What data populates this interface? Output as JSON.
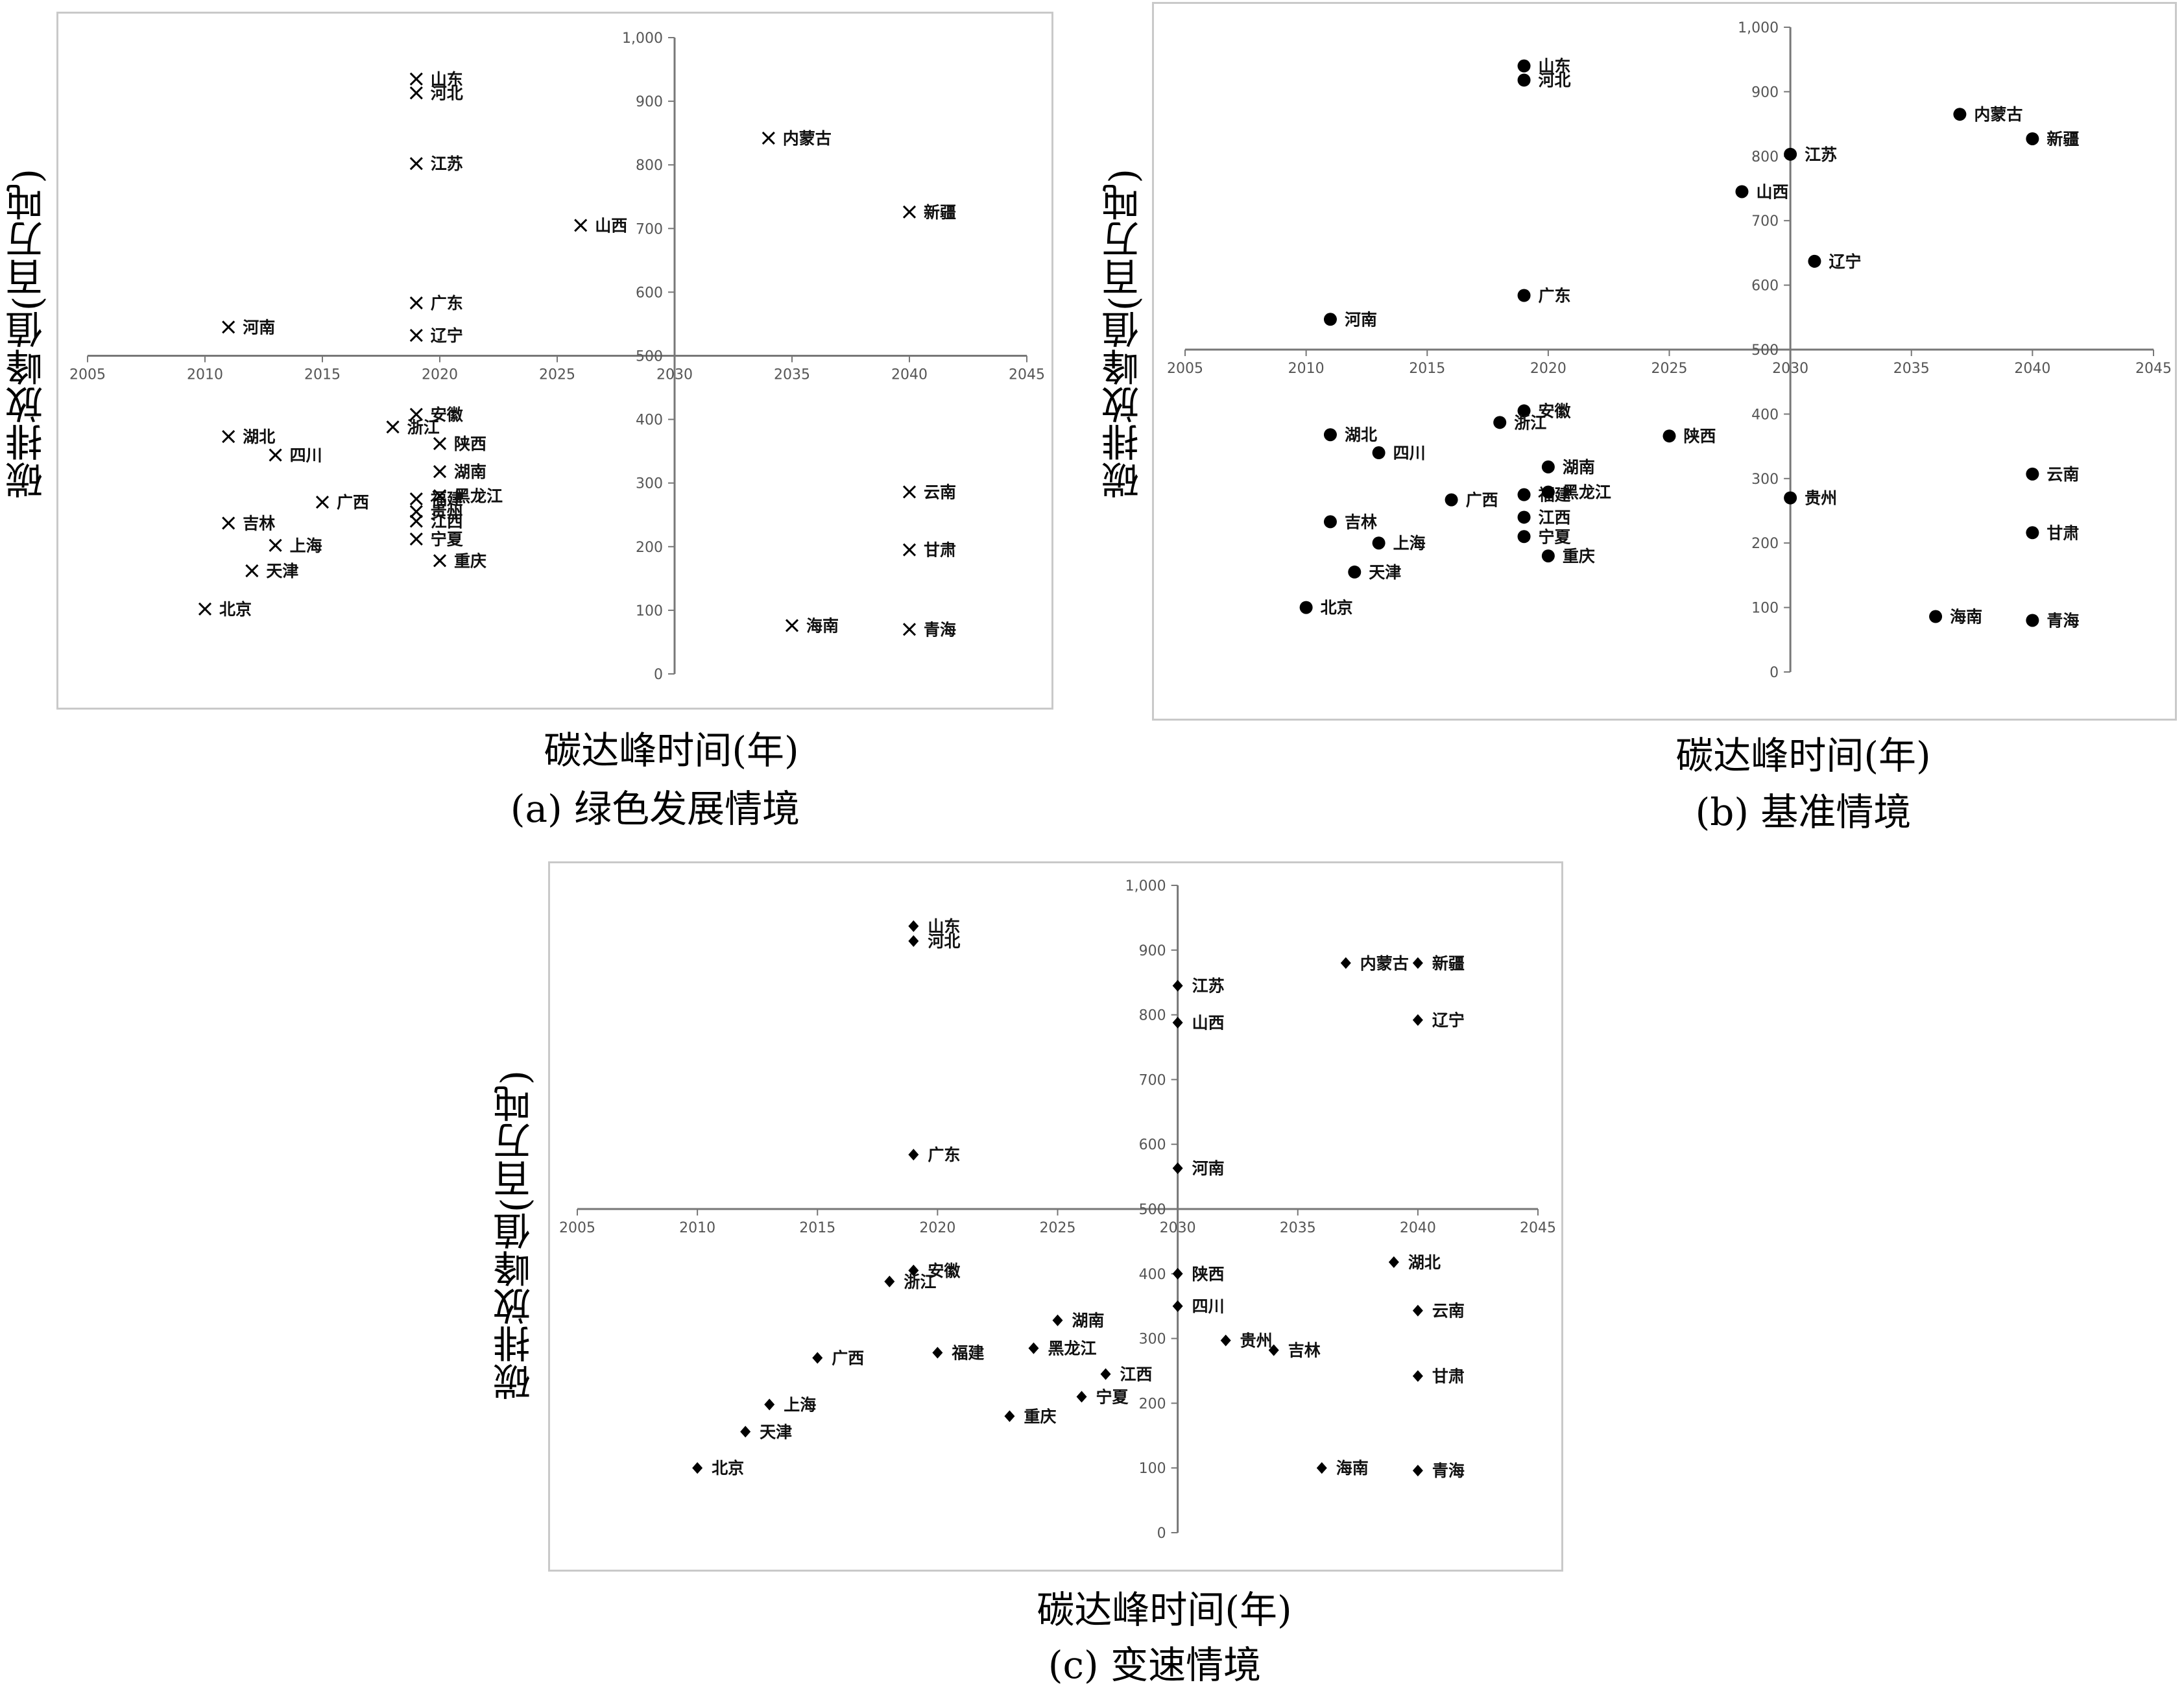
{
  "chart_data": [
    {
      "type": "scatter",
      "caption": "(a) 绿色发展情境",
      "xlabel": "碳达峰时间(年)",
      "ylabel": "碳排放峰值(百万吨)",
      "xlim": [
        2005,
        2045
      ],
      "ylim": [
        0,
        1000
      ],
      "xticks": [
        "2005",
        "2010",
        "2015",
        "2020",
        "2025",
        "2030",
        "2035",
        "2040",
        "2045"
      ],
      "yticks": [
        "0",
        "100",
        "200",
        "300",
        "400",
        "500",
        "600",
        "700",
        "800",
        "900",
        "1,000"
      ],
      "x_axis_crosses_y_at": 500,
      "y_axis_crosses_x_at": 2030,
      "marker": "x",
      "points": [
        {
          "name": "山东",
          "x": 2019,
          "y": 935
        },
        {
          "name": "河北",
          "x": 2019,
          "y": 913
        },
        {
          "name": "江苏",
          "x": 2019,
          "y": 802
        },
        {
          "name": "内蒙古",
          "x": 2034,
          "y": 842
        },
        {
          "name": "新疆",
          "x": 2040,
          "y": 726
        },
        {
          "name": "山西",
          "x": 2026,
          "y": 705
        },
        {
          "name": "广东",
          "x": 2019,
          "y": 583
        },
        {
          "name": "河南",
          "x": 2011,
          "y": 545
        },
        {
          "name": "辽宁",
          "x": 2019,
          "y": 532
        },
        {
          "name": "安徽",
          "x": 2019,
          "y": 408
        },
        {
          "name": "浙江",
          "x": 2018,
          "y": 388
        },
        {
          "name": "湖北",
          "x": 2011,
          "y": 373
        },
        {
          "name": "陕西",
          "x": 2020,
          "y": 362
        },
        {
          "name": "四川",
          "x": 2013,
          "y": 344
        },
        {
          "name": "湖南",
          "x": 2020,
          "y": 318
        },
        {
          "name": "福建",
          "x": 2019,
          "y": 275
        },
        {
          "name": "黑龙江",
          "x": 2020,
          "y": 280
        },
        {
          "name": "广西",
          "x": 2015,
          "y": 270
        },
        {
          "name": "贵州",
          "x": 2019,
          "y": 255
        },
        {
          "name": "江西",
          "x": 2019,
          "y": 240
        },
        {
          "name": "吉林",
          "x": 2011,
          "y": 237
        },
        {
          "name": "宁夏",
          "x": 2019,
          "y": 212
        },
        {
          "name": "上海",
          "x": 2013,
          "y": 202
        },
        {
          "name": "重庆",
          "x": 2020,
          "y": 178
        },
        {
          "name": "天津",
          "x": 2012,
          "y": 162
        },
        {
          "name": "北京",
          "x": 2010,
          "y": 102
        },
        {
          "name": "云南",
          "x": 2040,
          "y": 286
        },
        {
          "name": "甘肃",
          "x": 2040,
          "y": 195
        },
        {
          "name": "海南",
          "x": 2035,
          "y": 76
        },
        {
          "name": "青海",
          "x": 2040,
          "y": 70
        }
      ]
    },
    {
      "type": "scatter",
      "caption": "(b) 基准情境",
      "xlabel": "碳达峰时间(年)",
      "ylabel": "碳排放峰值(百万吨)",
      "xlim": [
        2005,
        2045
      ],
      "ylim": [
        0,
        1000
      ],
      "xticks": [
        "2005",
        "2010",
        "2015",
        "2020",
        "2025",
        "2030",
        "2035",
        "2040",
        "2045"
      ],
      "yticks": [
        "0",
        "100",
        "200",
        "300",
        "400",
        "500",
        "600",
        "700",
        "800",
        "900",
        "1,000"
      ],
      "x_axis_crosses_y_at": 500,
      "y_axis_crosses_x_at": 2030,
      "marker": "circle",
      "points": [
        {
          "name": "山东",
          "x": 2019,
          "y": 940
        },
        {
          "name": "河北",
          "x": 2019,
          "y": 918
        },
        {
          "name": "内蒙古",
          "x": 2037,
          "y": 865
        },
        {
          "name": "新疆",
          "x": 2040,
          "y": 827
        },
        {
          "name": "江苏",
          "x": 2030,
          "y": 803
        },
        {
          "name": "山西",
          "x": 2028,
          "y": 745
        },
        {
          "name": "辽宁",
          "x": 2031,
          "y": 637
        },
        {
          "name": "广东",
          "x": 2019,
          "y": 584
        },
        {
          "name": "河南",
          "x": 2011,
          "y": 547
        },
        {
          "name": "安徽",
          "x": 2019,
          "y": 405
        },
        {
          "name": "浙江",
          "x": 2018,
          "y": 387
        },
        {
          "name": "湖北",
          "x": 2011,
          "y": 368
        },
        {
          "name": "陕西",
          "x": 2025,
          "y": 366
        },
        {
          "name": "四川",
          "x": 2013,
          "y": 340
        },
        {
          "name": "湖南",
          "x": 2020,
          "y": 318
        },
        {
          "name": "福建",
          "x": 2019,
          "y": 275
        },
        {
          "name": "黑龙江",
          "x": 2020,
          "y": 279
        },
        {
          "name": "广西",
          "x": 2016,
          "y": 267
        },
        {
          "name": "贵州",
          "x": 2030,
          "y": 270
        },
        {
          "name": "江西",
          "x": 2019,
          "y": 240
        },
        {
          "name": "吉林",
          "x": 2011,
          "y": 233
        },
        {
          "name": "宁夏",
          "x": 2019,
          "y": 210
        },
        {
          "name": "上海",
          "x": 2013,
          "y": 200
        },
        {
          "name": "重庆",
          "x": 2020,
          "y": 180
        },
        {
          "name": "天津",
          "x": 2012,
          "y": 155
        },
        {
          "name": "北京",
          "x": 2010,
          "y": 100
        },
        {
          "name": "云南",
          "x": 2040,
          "y": 307
        },
        {
          "name": "甘肃",
          "x": 2040,
          "y": 216
        },
        {
          "name": "海南",
          "x": 2036,
          "y": 86
        },
        {
          "name": "青海",
          "x": 2040,
          "y": 80
        }
      ]
    },
    {
      "type": "scatter",
      "caption": "(c) 变速情境",
      "xlabel": "碳达峰时间(年)",
      "ylabel": "碳排放峰值(百万吨)",
      "xlim": [
        2005,
        2045
      ],
      "ylim": [
        0,
        1000
      ],
      "xticks": [
        "2005",
        "2010",
        "2015",
        "2020",
        "2025",
        "2030",
        "2035",
        "2040",
        "2045"
      ],
      "yticks": [
        "0",
        "100",
        "200",
        "300",
        "400",
        "500",
        "600",
        "700",
        "800",
        "900",
        "1,000"
      ],
      "x_axis_crosses_y_at": 500,
      "y_axis_crosses_x_at": 2030,
      "marker": "diamond",
      "points": [
        {
          "name": "山东",
          "x": 2019,
          "y": 937
        },
        {
          "name": "河北",
          "x": 2019,
          "y": 914
        },
        {
          "name": "内蒙古",
          "x": 2037,
          "y": 880
        },
        {
          "name": "新疆",
          "x": 2040,
          "y": 880
        },
        {
          "name": "江苏",
          "x": 2030,
          "y": 845
        },
        {
          "name": "山西",
          "x": 2030,
          "y": 788
        },
        {
          "name": "辽宁",
          "x": 2040,
          "y": 792
        },
        {
          "name": "广东",
          "x": 2019,
          "y": 584
        },
        {
          "name": "河南",
          "x": 2030,
          "y": 563
        },
        {
          "name": "湖北",
          "x": 2039,
          "y": 418
        },
        {
          "name": "安徽",
          "x": 2019,
          "y": 405
        },
        {
          "name": "陕西",
          "x": 2030,
          "y": 400
        },
        {
          "name": "浙江",
          "x": 2018,
          "y": 388
        },
        {
          "name": "四川",
          "x": 2030,
          "y": 350
        },
        {
          "name": "云南",
          "x": 2040,
          "y": 343
        },
        {
          "name": "湖南",
          "x": 2025,
          "y": 328
        },
        {
          "name": "贵州",
          "x": 2032,
          "y": 297
        },
        {
          "name": "黑龙江",
          "x": 2024,
          "y": 285
        },
        {
          "name": "吉林",
          "x": 2034,
          "y": 282
        },
        {
          "name": "福建",
          "x": 2020,
          "y": 278
        },
        {
          "name": "广西",
          "x": 2015,
          "y": 270
        },
        {
          "name": "江西",
          "x": 2027,
          "y": 245
        },
        {
          "name": "甘肃",
          "x": 2040,
          "y": 242
        },
        {
          "name": "宁夏",
          "x": 2026,
          "y": 210
        },
        {
          "name": "上海",
          "x": 2013,
          "y": 198
        },
        {
          "name": "重庆",
          "x": 2023,
          "y": 180
        },
        {
          "name": "天津",
          "x": 2012,
          "y": 156
        },
        {
          "name": "北京",
          "x": 2010,
          "y": 100
        },
        {
          "name": "海南",
          "x": 2036,
          "y": 100
        },
        {
          "name": "青海",
          "x": 2040,
          "y": 96
        }
      ]
    }
  ]
}
